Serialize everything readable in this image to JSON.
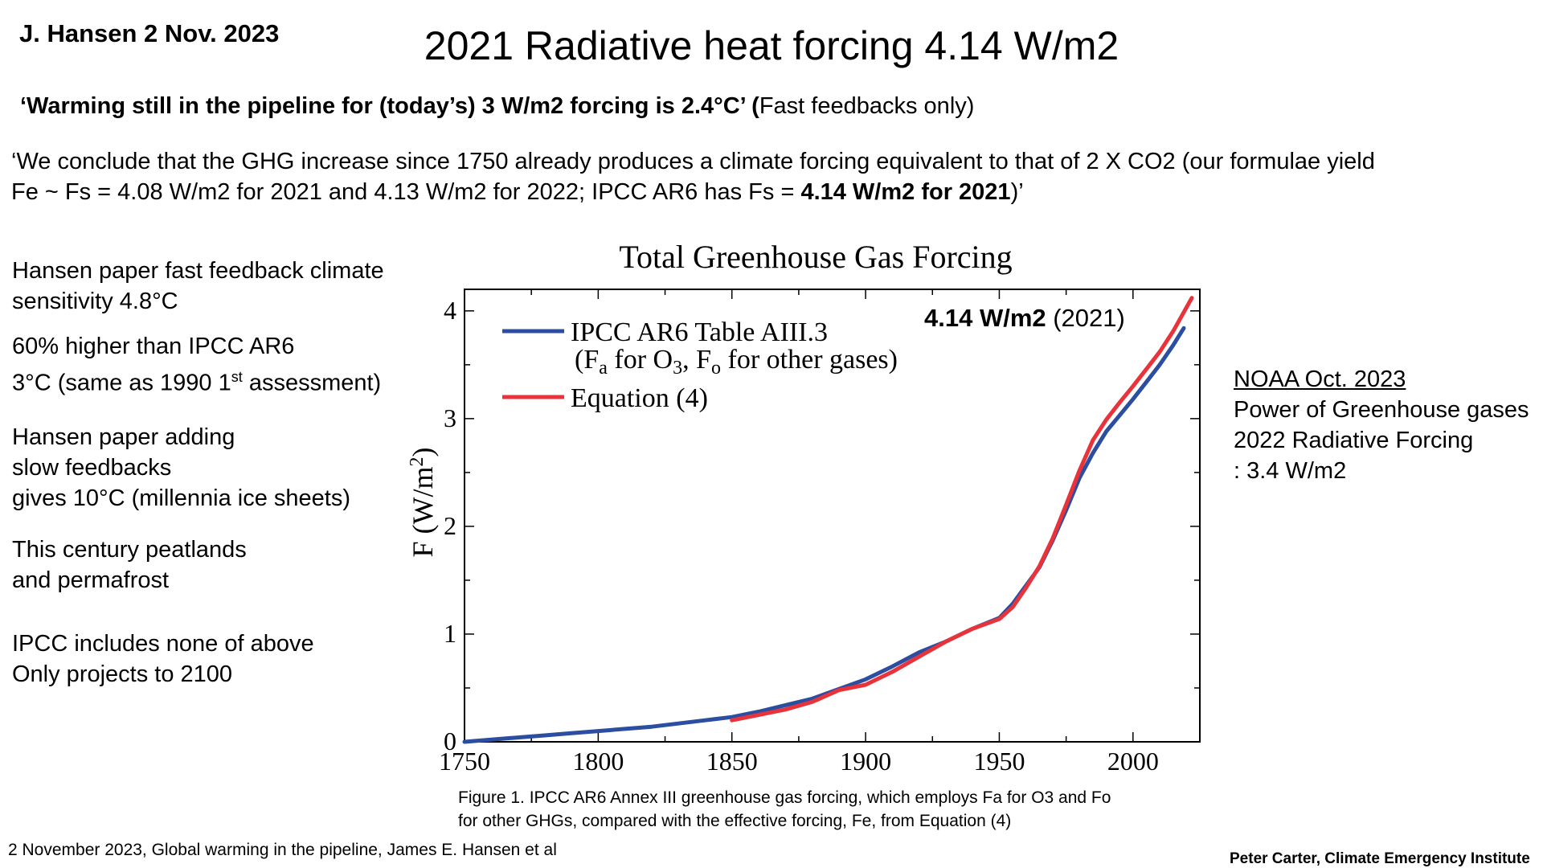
{
  "header": {
    "author": "J. Hansen 2 Nov. 2023",
    "title": "2021 Radiative heat forcing 4.14 W/m2"
  },
  "quote1": {
    "bold": "‘Warming still in the pipeline for (today’s) 3 W/m2 forcing is 2.4°C’  (",
    "normal": "Fast feedbacks only)"
  },
  "quote2": {
    "line1": "‘We conclude that the GHG increase since 1750 already produces a climate forcing equivalent to that of 2 X CO2 (our formulae yield",
    "line2a": "Fe ~ Fs = 4.08 W/m2 for 2021 and 4.13 W/m2 for 2022; IPCC AR6 has Fs = ",
    "line2b": "4.14 W/m2 for 2021",
    "line2c": ")’"
  },
  "left_notes": {
    "n1a": "Hansen paper fast feedback climate",
    "n1b": "sensitivity 4.8°C",
    "n2a": "60% higher than IPCC AR6",
    "n2b": "3°C (same as 1990 1",
    "n2sup": "st",
    "n2c": " assessment)",
    "n3a": "Hansen paper adding",
    "n3b": "slow feedbacks",
    "n3c": "gives 10°C (millennia ice sheets)",
    "n4a": "This century peatlands",
    "n4b": "and permafrost",
    "n5a": "IPCC includes none of above",
    "n5b": "Only projects to 2100"
  },
  "right_notes": {
    "heading": "NOAA Oct. 2023",
    "l1": "Power of Greenhouse gases",
    "l2": "2022 Radiative Forcing",
    "l3": ":  3.4 W/m2"
  },
  "caption": {
    "l1": "Figure 1. IPCC AR6 Annex III greenhouse gas forcing, which employs Fa for O3 and Fo",
    "l2": "for other GHGs, compared with the effective forcing, Fe, from Equation (4)"
  },
  "footer": {
    "source": "2 November 2023, Global warming in the pipeline, James E. Hansen et al",
    "credit": "Peter Carter, Climate Emergency Institute"
  },
  "colors": {
    "ipcc": "#2c4ea0",
    "equation": "#e8333b"
  },
  "chart_data": {
    "type": "line",
    "title": "Total Greenhouse Gas Forcing",
    "ylabel_main": "F (W/m",
    "ylabel_sup": "2",
    "ylabel_end": ")",
    "xlim": [
      1750,
      2025
    ],
    "ylim": [
      0,
      4.2
    ],
    "xticks": [
      1750,
      1800,
      1850,
      1900,
      1950,
      2000
    ],
    "yticks": [
      0,
      1,
      2,
      3,
      4
    ],
    "annotation_bold": "4.14 W/m2",
    "annotation_normal": " (2021)",
    "legend": {
      "s1_line1": "IPCC AR6 Table AIII.3",
      "s1_l2_a": "(F",
      "s1_l2_sub1": "a",
      "s1_l2_b": " for O",
      "s1_l2_sub2": "3",
      "s1_l2_c": ", F",
      "s1_l2_sub3": "o",
      "s1_l2_d": " for other gases)",
      "s2": "Equation (4)"
    },
    "series": [
      {
        "name": "IPCC AR6 Table AIII.3",
        "color": "#2c4ea0",
        "x": [
          1750,
          1760,
          1770,
          1780,
          1790,
          1800,
          1810,
          1820,
          1830,
          1840,
          1850,
          1860,
          1870,
          1880,
          1890,
          1900,
          1910,
          1920,
          1930,
          1940,
          1950,
          1955,
          1960,
          1965,
          1970,
          1975,
          1980,
          1985,
          1990,
          1995,
          2000,
          2005,
          2010,
          2015,
          2019
        ],
        "y": [
          0.0,
          0.02,
          0.04,
          0.06,
          0.08,
          0.1,
          0.12,
          0.14,
          0.17,
          0.2,
          0.23,
          0.28,
          0.34,
          0.4,
          0.49,
          0.58,
          0.7,
          0.83,
          0.93,
          1.05,
          1.15,
          1.28,
          1.45,
          1.62,
          1.87,
          2.15,
          2.45,
          2.68,
          2.88,
          3.03,
          3.18,
          3.34,
          3.5,
          3.68,
          3.84
        ]
      },
      {
        "name": "Equation (4)",
        "color": "#e8333b",
        "x": [
          1850,
          1860,
          1870,
          1880,
          1890,
          1900,
          1910,
          1920,
          1930,
          1940,
          1950,
          1955,
          1960,
          1965,
          1970,
          1975,
          1980,
          1985,
          1990,
          1995,
          2000,
          2005,
          2010,
          2015,
          2022
        ],
        "y": [
          0.2,
          0.25,
          0.3,
          0.37,
          0.48,
          0.53,
          0.65,
          0.79,
          0.93,
          1.05,
          1.14,
          1.25,
          1.43,
          1.63,
          1.89,
          2.2,
          2.52,
          2.8,
          2.99,
          3.15,
          3.3,
          3.46,
          3.62,
          3.81,
          4.12
        ]
      }
    ]
  }
}
